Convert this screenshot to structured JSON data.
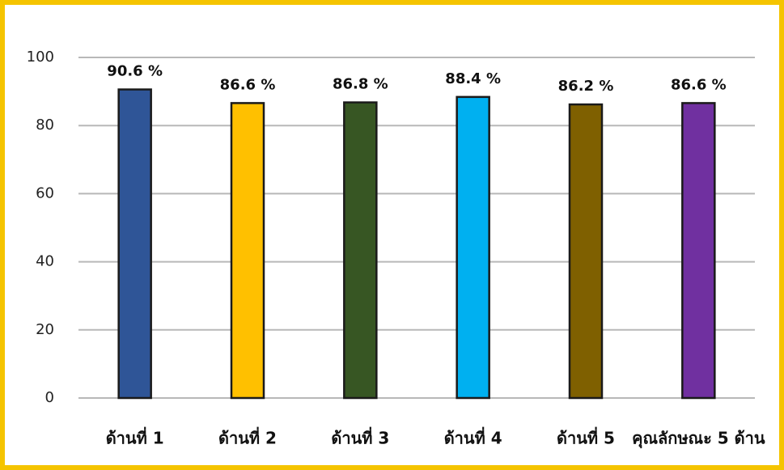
{
  "chart_data": {
    "type": "bar",
    "categories": [
      "ด้านที่ 1",
      "ด้านที่ 2",
      "ด้านที่ 3",
      "ด้านที่ 4",
      "ด้านที่ 5",
      "คุณลักษณะ 5 ด้าน"
    ],
    "values": [
      90.6,
      86.6,
      86.8,
      88.4,
      86.2,
      86.6
    ],
    "value_labels": [
      "90.6 %",
      "86.6 %",
      "86.8 %",
      "88.4 %",
      "86.2 %",
      "86.6 %"
    ],
    "colors": [
      "#2f5597",
      "#ffc000",
      "#375623",
      "#00b0f0",
      "#7f6000",
      "#7030a0"
    ],
    "ylim": [
      0,
      100
    ],
    "yticks": [
      0,
      20,
      40,
      60,
      80,
      100
    ],
    "grid": true
  }
}
